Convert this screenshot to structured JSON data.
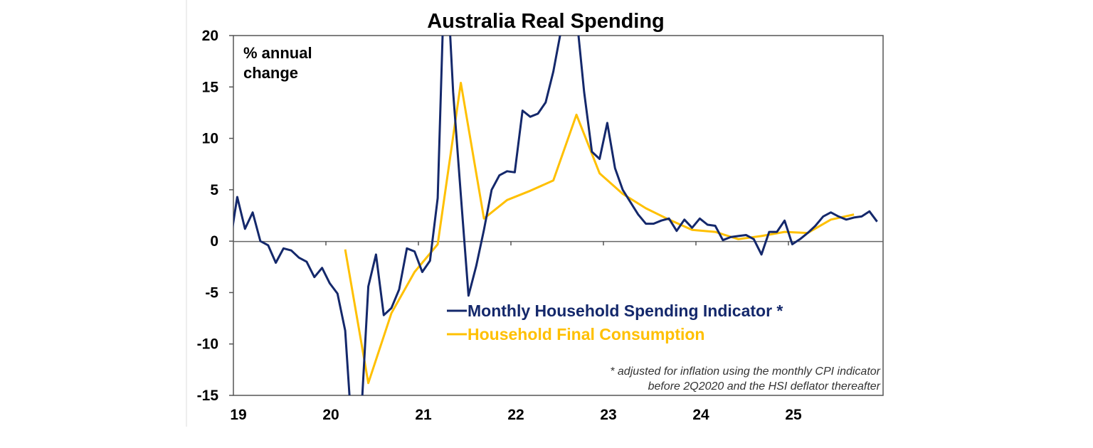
{
  "chart_data": {
    "type": "line",
    "title": "Australia Real Spending",
    "ylabel": "% annual\nchange",
    "ylabel_lines": [
      "% annual",
      "change"
    ],
    "ylim": [
      -15,
      20
    ],
    "yticks": [
      20,
      15,
      10,
      5,
      0,
      -5,
      -10,
      -15
    ],
    "xlim": [
      "2019-01",
      "2025-12"
    ],
    "xtick_labels": [
      "19",
      "20",
      "21",
      "22",
      "23",
      "24",
      "25"
    ],
    "grid": false,
    "legend_position": "center-right",
    "footnote": [
      "* adjusted for inflation using the monthly CPI indicator",
      "before 2Q2020 and the HSI deflator thereafter"
    ],
    "colors": {
      "monthly": "#14286b",
      "quarterly": "#ffc000"
    },
    "series": [
      {
        "name": "Monthly Household Spending Indicator *",
        "legend_label": "Monthly Household Spending Indicator *",
        "frequency": "monthly",
        "start": "2018-12",
        "values": [
          -0.5,
          4.3,
          1.2,
          2.8,
          0.0,
          -0.4,
          -2.1,
          -0.7,
          -0.9,
          -1.6,
          -2.0,
          -3.5,
          -2.6,
          -4.1,
          -5.1,
          -8.7,
          -20.0,
          -18.0,
          -4.4,
          -1.3,
          -7.2,
          -6.5,
          -4.7,
          -0.7,
          -1.0,
          -3.0,
          -1.9,
          4.2,
          29.0,
          14.5,
          4.5,
          -5.3,
          -2.4,
          1.1,
          5.0,
          6.4,
          6.8,
          6.7,
          12.7,
          12.1,
          12.4,
          13.5,
          16.5,
          20.5,
          23.0,
          22.0,
          14.5,
          8.7,
          8.0,
          11.5,
          7.1,
          5.0,
          3.8,
          2.6,
          1.7,
          1.7,
          2.0,
          2.2,
          1.0,
          2.1,
          1.3,
          2.2,
          1.6,
          1.5,
          0.1,
          0.4,
          0.5,
          0.6,
          0.2,
          -1.3,
          0.9,
          0.9,
          2.0,
          -0.3,
          0.2,
          0.8,
          1.5,
          2.4,
          2.8,
          2.4,
          2.1,
          2.3,
          2.4,
          2.9,
          1.9
        ]
      },
      {
        "name": "Household Final Consumption",
        "legend_label": "Household Final Consumption",
        "frequency": "quarterly",
        "x": [
          "2020-03",
          "2020-06",
          "2020-09",
          "2020-12",
          "2021-03",
          "2021-06",
          "2021-09",
          "2021-12",
          "2022-03",
          "2022-06",
          "2022-09",
          "2022-12",
          "2023-03",
          "2023-06",
          "2023-09",
          "2023-12",
          "2024-03",
          "2024-06",
          "2024-09",
          "2024-12",
          "2025-03",
          "2025-06",
          "2025-09"
        ],
        "values": [
          -0.8,
          -13.8,
          -7.0,
          -3.0,
          -0.3,
          15.4,
          2.2,
          4.0,
          4.9,
          5.9,
          12.3,
          6.6,
          4.6,
          3.2,
          2.1,
          1.1,
          0.9,
          0.2,
          0.5,
          0.9,
          0.8,
          2.1,
          2.6
        ]
      }
    ]
  }
}
